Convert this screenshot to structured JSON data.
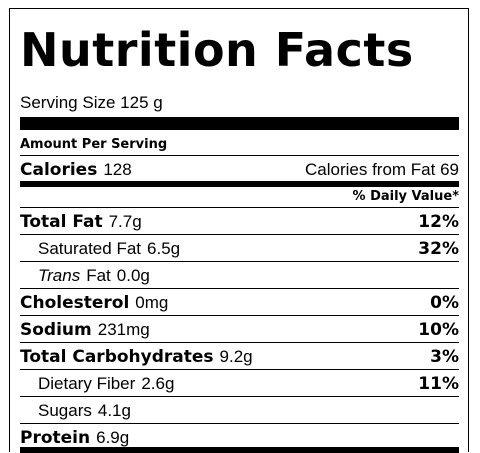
{
  "label": {
    "title": "Nutrition Facts",
    "serving": "Serving Size 125 g",
    "amount_per_serving": "Amount Per Serving",
    "calories": {
      "label": "Calories",
      "value": "128",
      "from_fat": "Calories from Fat 69"
    },
    "daily_value_header": "% Daily Value*",
    "nutrients": {
      "total_fat": {
        "label": "Total Fat",
        "amount": "7.7g",
        "dv": "12%"
      },
      "saturated_fat": {
        "label": "Saturated Fat",
        "amount": "6.5g",
        "dv": "32%"
      },
      "trans_fat": {
        "label_italic": "Trans",
        "label": "Fat",
        "amount": "0.0g"
      },
      "cholesterol": {
        "label": "Cholesterol",
        "amount": "0mg",
        "dv": "0%"
      },
      "sodium": {
        "label": "Sodium",
        "amount": "231mg",
        "dv": "10%"
      },
      "total_carbs": {
        "label": "Total Carbohydrates",
        "amount": "9.2g",
        "dv": "3%"
      },
      "dietary_fiber": {
        "label": "Dietary Fiber",
        "amount": "2.6g",
        "dv": "11%"
      },
      "sugars": {
        "label": "Sugars",
        "amount": "4.1g"
      },
      "protein": {
        "label": "Protein",
        "amount": "6.9g"
      }
    }
  }
}
